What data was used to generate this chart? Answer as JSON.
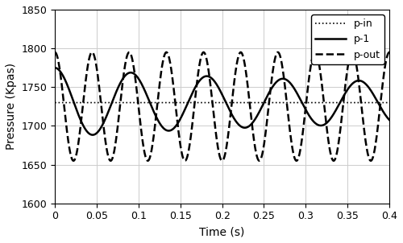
{
  "xlabel": "Time (s)",
  "ylabel": "Pressure (Kpas)",
  "xlim": [
    0,
    0.4
  ],
  "ylim": [
    1600,
    1850
  ],
  "yticks": [
    1600,
    1650,
    1700,
    1750,
    1800,
    1850
  ],
  "xticks": [
    0,
    0.05,
    0.1,
    0.15,
    0.2,
    0.25,
    0.3,
    0.35,
    0.4
  ],
  "p_in_mean": 1730,
  "p_in_amp": 0,
  "p_1_mean": 1730,
  "p_1_amp1": 45,
  "p_1_amp2": 22,
  "p_1_freq1": 22.5,
  "p_1_freq2": 11.0,
  "p_1_decay": 3.5,
  "p_1_phase1": 1.57,
  "p_1_phase2": 1.57,
  "p_out_mean": 1725,
  "p_out_amp": 70,
  "p_out_freq": 22.5,
  "p_out_phase": 1.57,
  "grid_color": "#cccccc",
  "line_color": "#000000",
  "legend_labels": [
    "p-in",
    "p-1",
    "p-out"
  ],
  "legend_loc": "upper right"
}
